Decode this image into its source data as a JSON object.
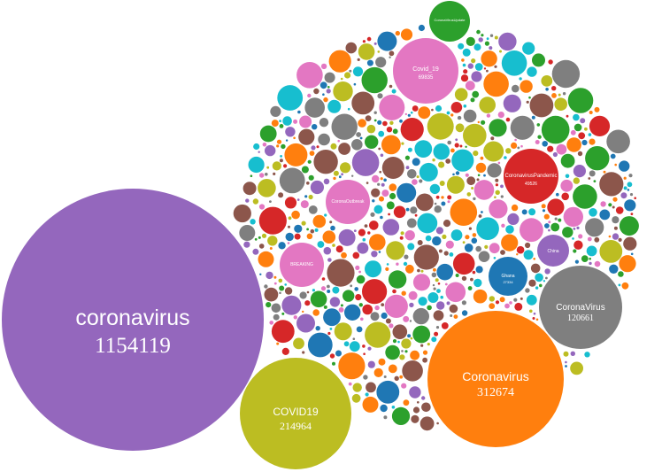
{
  "chart_data": {
    "type": "bubble",
    "title": "",
    "bubbles": [
      {
        "label": "coronavirus",
        "value": 1154119,
        "color": "#9467bd"
      },
      {
        "label": "Coronavirus",
        "value": 312674,
        "color": "#ff7f0e"
      },
      {
        "label": "COVID19",
        "value": 214964,
        "color": "#bcbd22"
      },
      {
        "label": "CoronaVirus",
        "value": 120661,
        "color": "#7f7f7f"
      },
      {
        "label": "Covid_19",
        "value": 69835,
        "color": "#e377c2"
      },
      {
        "label": "CoronavirusPandemic",
        "value": 49526,
        "color": "#d62728"
      },
      {
        "label": "CoronaOutbreak",
        "value": 0,
        "color": "#e377c2"
      },
      {
        "label": "BREAKING",
        "value": 0,
        "color": "#e377c2"
      },
      {
        "label": "Ghana",
        "value": 27334,
        "color": "#1f77b4"
      },
      {
        "label": "China",
        "value": 0,
        "color": "#9467bd"
      },
      {
        "label": "CoronaVirusUpdate",
        "value": 0,
        "color": "#2ca02c"
      }
    ]
  }
}
